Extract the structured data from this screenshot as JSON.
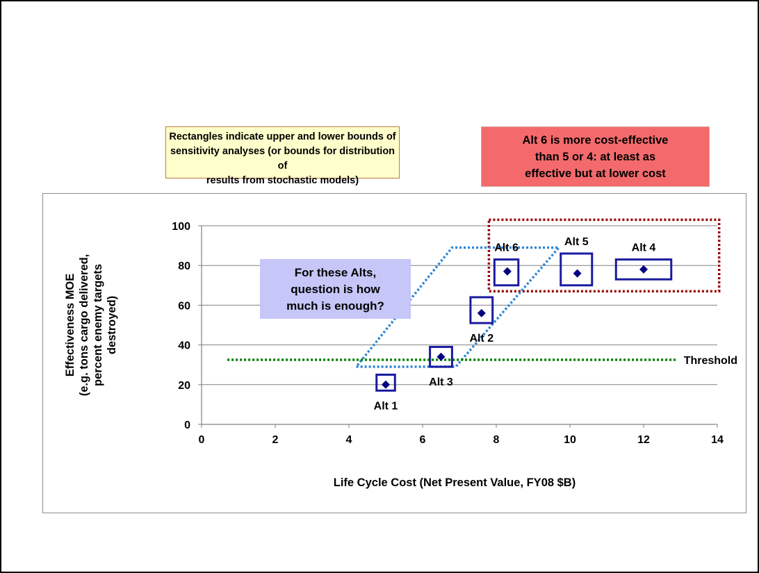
{
  "notes": {
    "bounds": [
      "Rectangles indicate upper and lower bounds of",
      "sensitivity analyses (or bounds for distribution of",
      "results from stochastic models)"
    ],
    "cost_effective": [
      "Alt 6 is more cost-effective",
      "than 5 or 4: at least as",
      "effective but at lower cost"
    ],
    "question": [
      "For these Alts,",
      "question is how",
      "much is enough?"
    ]
  },
  "colors": {
    "point": "#000080",
    "box": "#1a1aa0",
    "threshold": "#008000",
    "region_outline": "#2e86d6",
    "highlight_outline": "#990000",
    "gridline": "#808080"
  },
  "chart_data": {
    "type": "scatter",
    "title": "",
    "xlabel": "Life Cycle Cost (Net Present Value, FY08 $B)",
    "ylabel": [
      "Effectiveness MOE",
      "(e.g. tons cargo delivered,",
      "percent enemy targets",
      "destroyed)"
    ],
    "xlim": [
      0,
      14
    ],
    "ylim": [
      0,
      100
    ],
    "xticks": [
      0,
      2,
      4,
      6,
      8,
      10,
      12,
      14
    ],
    "yticks": [
      0,
      20,
      40,
      60,
      80,
      100
    ],
    "grid": "horizontal",
    "points": [
      {
        "label": "Alt 1",
        "x": 5.0,
        "y": 20,
        "xrange": [
          4.75,
          5.25
        ],
        "yrange": [
          17,
          25
        ],
        "label_pos": "below"
      },
      {
        "label": "Alt 3",
        "x": 6.5,
        "y": 34,
        "xrange": [
          6.2,
          6.8
        ],
        "yrange": [
          29,
          39
        ],
        "label_pos": "below"
      },
      {
        "label": "Alt 2",
        "x": 7.6,
        "y": 56,
        "xrange": [
          7.3,
          7.9
        ],
        "yrange": [
          51,
          64
        ],
        "label_pos": "below"
      },
      {
        "label": "Alt 6",
        "x": 8.3,
        "y": 77,
        "xrange": [
          7.95,
          8.6
        ],
        "yrange": [
          70,
          83
        ],
        "label_pos": "above"
      },
      {
        "label": "Alt 5",
        "x": 10.2,
        "y": 76,
        "xrange": [
          9.75,
          10.6
        ],
        "yrange": [
          70,
          86
        ],
        "label_pos": "above"
      },
      {
        "label": "Alt 4",
        "x": 12.0,
        "y": 78,
        "xrange": [
          11.25,
          12.75
        ],
        "yrange": [
          73,
          83
        ],
        "label_pos": "above"
      }
    ],
    "threshold": {
      "label": "Threshold",
      "y": 32.5,
      "xrange": [
        0.7,
        12.9
      ]
    },
    "region_of_interest": {
      "corners": [
        [
          4.2,
          29
        ],
        [
          6.9,
          29
        ],
        [
          9.7,
          89
        ],
        [
          6.8,
          89
        ]
      ]
    },
    "cost_effective_region": {
      "xrange": [
        7.8,
        14.05
      ],
      "yrange": [
        67,
        103
      ]
    }
  }
}
